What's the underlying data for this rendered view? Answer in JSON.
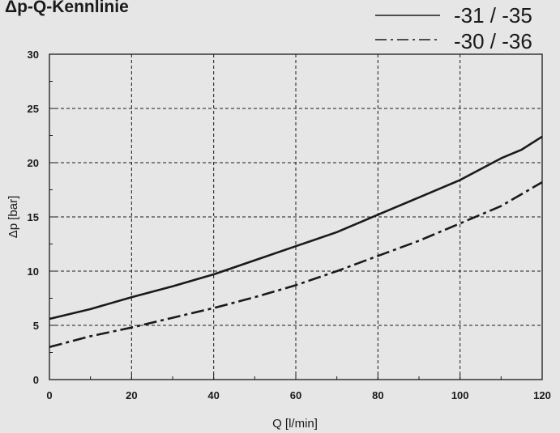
{
  "chart_data": {
    "type": "line",
    "title": "Δp-Q-Kennlinie",
    "xlabel": "Q [l/min]",
    "ylabel": "Δp [bar]",
    "xlim": [
      0,
      120
    ],
    "ylim": [
      0,
      30
    ],
    "x_ticks": [
      0,
      20,
      40,
      60,
      80,
      100,
      120
    ],
    "y_ticks": [
      0,
      5,
      10,
      15,
      20,
      25,
      30
    ],
    "x_tick_labels": [
      "0",
      "20",
      "40",
      "60",
      "80",
      "100",
      "120"
    ],
    "y_tick_labels": [
      "0",
      "5",
      "10",
      "15",
      "20",
      "25",
      "30"
    ],
    "grid": true,
    "background": "#e6e6e6",
    "legend_position": "top-right",
    "series": [
      {
        "name": "-31 / -35",
        "style": "solid",
        "color": "#1a1a1a",
        "points": [
          [
            0,
            5.6
          ],
          [
            10,
            6.5
          ],
          [
            20,
            7.6
          ],
          [
            30,
            8.6
          ],
          [
            40,
            9.7
          ],
          [
            50,
            11
          ],
          [
            60,
            12.3
          ],
          [
            70,
            13.6
          ],
          [
            80,
            15.2
          ],
          [
            90,
            16.8
          ],
          [
            100,
            18.4
          ],
          [
            110,
            20.4
          ],
          [
            115,
            21.2
          ],
          [
            120,
            22.4
          ]
        ]
      },
      {
        "name": "-30 / -36",
        "style": "dashdot",
        "color": "#1a1a1a",
        "points": [
          [
            0,
            3
          ],
          [
            10,
            4
          ],
          [
            20,
            4.8
          ],
          [
            30,
            5.7
          ],
          [
            40,
            6.6
          ],
          [
            50,
            7.6
          ],
          [
            60,
            8.7
          ],
          [
            70,
            10
          ],
          [
            80,
            11.4
          ],
          [
            90,
            12.8
          ],
          [
            100,
            14.4
          ],
          [
            110,
            16
          ],
          [
            120,
            18.2
          ]
        ]
      }
    ]
  }
}
